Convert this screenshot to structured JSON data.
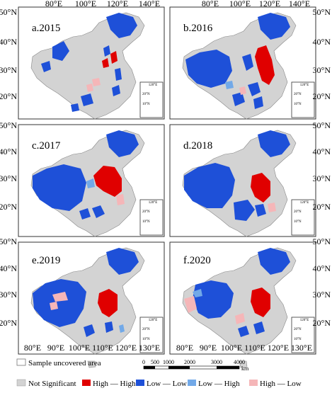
{
  "panels": [
    {
      "label": "a.2015"
    },
    {
      "label": "b.2016"
    },
    {
      "label": "c.2017"
    },
    {
      "label": "d.2018"
    },
    {
      "label": "e.2019"
    },
    {
      "label": "f.2020"
    }
  ],
  "left_lat_labels": [
    [
      "50°N",
      "40°N",
      "30°N",
      "20°N"
    ],
    [
      "50°N",
      "40°N",
      "30°N",
      "20°N"
    ],
    [
      "50°N",
      "40°N",
      "30°N",
      "20°N"
    ]
  ],
  "right_lat_labels": [
    [
      "50°N",
      "40°N",
      "30°N",
      "20°N"
    ],
    [
      "50°N",
      "40°N",
      "30°N",
      "20°N"
    ],
    [
      "50°N",
      "40°N",
      "30°N",
      "20°N"
    ]
  ],
  "top_lon_labels": {
    "left": [
      "80°E",
      "100°E",
      "120°E",
      "140°E"
    ],
    "right": [
      "80°E",
      "100°E",
      "120°E",
      "140°E"
    ]
  },
  "bottom_lon_labels": {
    "left": [
      "80°E",
      "90°E",
      "100°E",
      "110°E",
      "120°E",
      "130°E"
    ],
    "right": [
      "80°E",
      "90°E",
      "100°E",
      "110°E",
      "120°E",
      "130°E"
    ]
  },
  "inset": {
    "lon": "120°E",
    "lat_labels": [
      "20°N",
      "10°N"
    ]
  },
  "legend": {
    "uncovered": "Sample uncovered area",
    "items": [
      {
        "label": "Not Significant",
        "color": "#d3d3d3"
      },
      {
        "label": "High — High",
        "color": "#e00000"
      },
      {
        "label": "Low — Low",
        "color": "#1e50d8"
      },
      {
        "label": "Low — High",
        "color": "#72a9e8"
      },
      {
        "label": "High — Low",
        "color": "#f5b6b8"
      }
    ]
  },
  "scalebar": {
    "ticks": [
      "0",
      "500",
      "1000",
      "2000",
      "3000",
      "4000"
    ],
    "unit": "km"
  }
}
